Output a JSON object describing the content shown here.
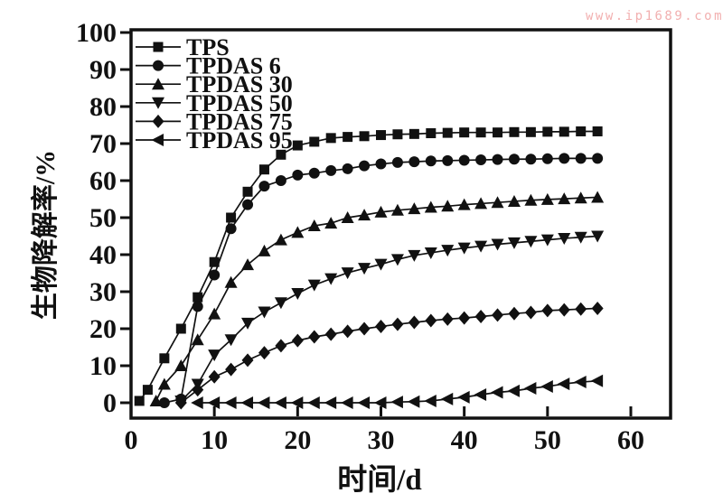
{
  "watermark": {
    "text": "www.ip1689.com",
    "color": "#f2b0b0"
  },
  "chart_data": {
    "type": "line",
    "title": "",
    "xlabel": "时间/d",
    "ylabel": "生物降解率/%",
    "xlim": [
      0,
      64.8
    ],
    "ylim": [
      -4.2,
      100.7
    ],
    "xticks": [
      0,
      10,
      20,
      30,
      40,
      50,
      60
    ],
    "yticks": [
      0,
      10,
      20,
      30,
      40,
      50,
      60,
      70,
      80,
      90,
      100
    ],
    "grid": false,
    "legend_position": "top-left",
    "ink_color": "#111111",
    "series": [
      {
        "name": "TPS",
        "marker": "square",
        "x": [
          1,
          2,
          4,
          6,
          8,
          10,
          12,
          14,
          16,
          18,
          20,
          22,
          24,
          26,
          28,
          30,
          32,
          34,
          36,
          38,
          40,
          42,
          44,
          46,
          48,
          50,
          52,
          54,
          56
        ],
        "y": [
          0.5,
          3.5,
          12,
          20,
          28.5,
          38,
          50,
          57,
          63,
          67,
          69.5,
          70.5,
          71.5,
          71.8,
          72,
          72.3,
          72.5,
          72.6,
          72.8,
          72.9,
          73,
          73,
          73,
          73.1,
          73.1,
          73.2,
          73.2,
          73.3,
          73.3
        ]
      },
      {
        "name": "TPDAS 6",
        "marker": "circle",
        "x": [
          4,
          6,
          8,
          10,
          12,
          14,
          16,
          18,
          20,
          22,
          24,
          26,
          28,
          30,
          32,
          34,
          36,
          38,
          40,
          42,
          44,
          46,
          48,
          50,
          52,
          54,
          56
        ],
        "y": [
          0,
          1,
          26,
          34.5,
          47,
          53.5,
          58.5,
          60,
          61.5,
          62,
          62.7,
          63.2,
          64,
          64.5,
          64.9,
          65.1,
          65.3,
          65.4,
          65.5,
          65.6,
          65.7,
          65.8,
          65.8,
          65.9,
          66,
          66,
          66
        ]
      },
      {
        "name": "TPDAS 30",
        "marker": "triangle-up",
        "x": [
          3,
          4,
          6,
          8,
          10,
          12,
          14,
          16,
          18,
          20,
          22,
          24,
          26,
          28,
          30,
          32,
          34,
          36,
          38,
          40,
          42,
          44,
          46,
          48,
          50,
          52,
          54,
          56
        ],
        "y": [
          0.5,
          5,
          10,
          17,
          24,
          32.5,
          37.3,
          41,
          44,
          46,
          47.8,
          48.5,
          50,
          50.7,
          51.5,
          52,
          52.4,
          52.8,
          53.1,
          53.5,
          53.8,
          54.1,
          54.4,
          54.7,
          54.9,
          55.1,
          55.3,
          55.5
        ]
      },
      {
        "name": "TPDAS 50",
        "marker": "triangle-down",
        "x": [
          6,
          8,
          10,
          12,
          14,
          16,
          18,
          20,
          22,
          24,
          26,
          28,
          30,
          32,
          34,
          36,
          38,
          40,
          42,
          44,
          46,
          48,
          50,
          52,
          54,
          56
        ],
        "y": [
          0.5,
          5,
          12.9,
          17,
          21.5,
          24.5,
          27,
          29.5,
          31.8,
          33.5,
          35.1,
          36.3,
          37.4,
          38.7,
          39.8,
          40.5,
          41.2,
          41.8,
          42.3,
          42.8,
          43.2,
          43.6,
          44,
          44.4,
          44.7,
          45
        ]
      },
      {
        "name": "TPDAS 75",
        "marker": "diamond",
        "x": [
          6,
          8,
          10,
          12,
          14,
          16,
          18,
          20,
          22,
          24,
          26,
          28,
          30,
          32,
          34,
          36,
          38,
          40,
          42,
          44,
          46,
          48,
          50,
          52,
          54,
          56
        ],
        "y": [
          0,
          3.5,
          7,
          9,
          11.5,
          13.5,
          15.4,
          16.8,
          17.8,
          18.5,
          19.3,
          20,
          20.6,
          21.2,
          21.7,
          22.2,
          22.6,
          22.9,
          23.3,
          23.7,
          24.1,
          24.4,
          24.9,
          25.1,
          25.3,
          25.5
        ]
      },
      {
        "name": "TPDAS 95",
        "marker": "triangle-left",
        "x": [
          8,
          10,
          12,
          14,
          16,
          18,
          20,
          22,
          24,
          26,
          28,
          30,
          32,
          34,
          36,
          38,
          40,
          42,
          44,
          46,
          48,
          50,
          52,
          54,
          56
        ],
        "y": [
          0,
          0,
          0,
          0,
          0,
          0,
          0,
          0,
          0,
          0,
          0,
          0,
          0.2,
          0.3,
          0.5,
          1,
          1.5,
          2.2,
          2.8,
          3.2,
          3.9,
          4.4,
          5.1,
          5.6,
          5.9
        ]
      }
    ]
  }
}
